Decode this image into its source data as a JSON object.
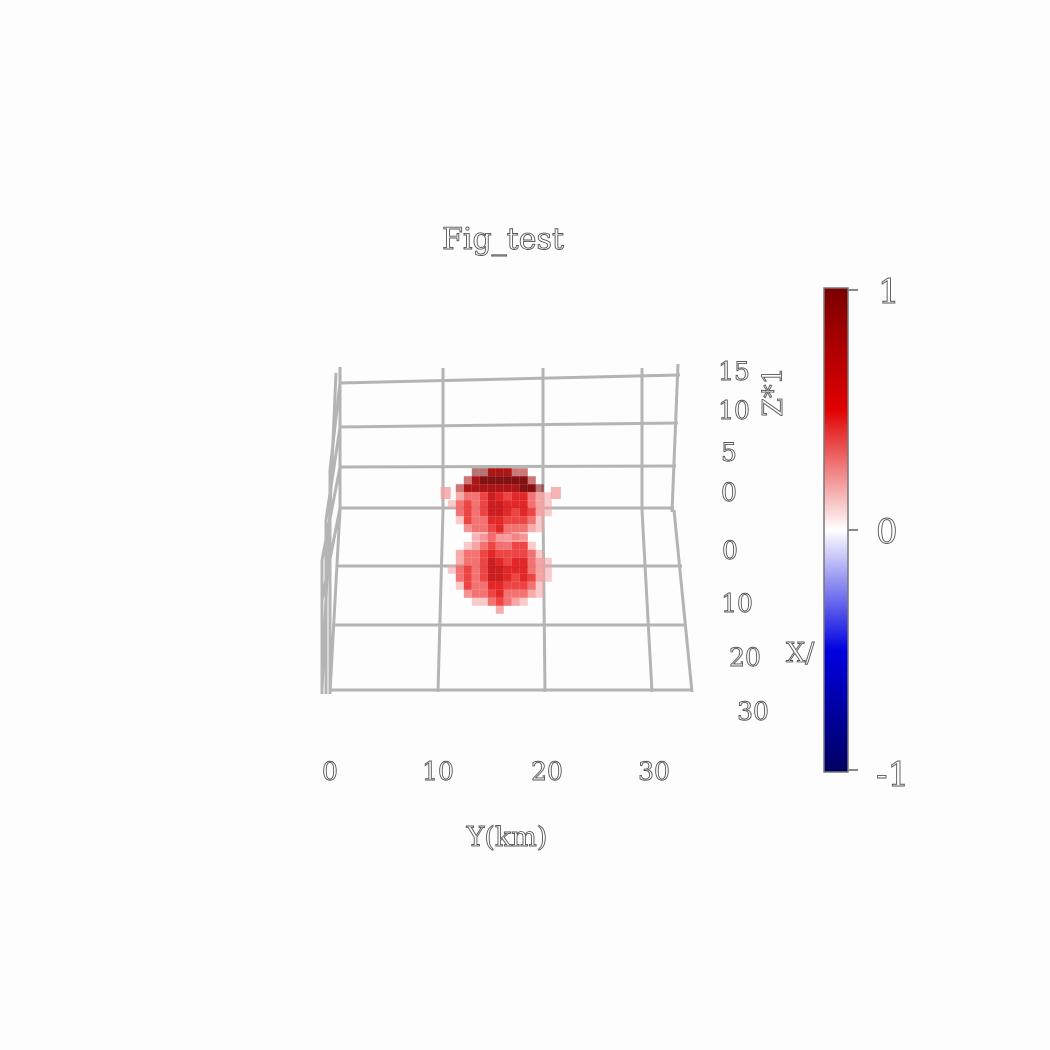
{
  "chart_data": {
    "type": "heatmap",
    "render": "3d-voxel",
    "title": "Fig_test",
    "xlabel": "Y(km)",
    "ylabel": "X/",
    "zlabel": "Z*1",
    "y_ticks": [
      "0",
      "10",
      "20",
      "30"
    ],
    "x_ticks": [
      "0",
      "10",
      "20",
      "30"
    ],
    "z_ticks": [
      "0",
      "5",
      "10",
      "15"
    ],
    "colorbar": {
      "ticks": [
        "1",
        "0",
        "-1"
      ],
      "range": [
        -1,
        1
      ],
      "colors": [
        "#7a0000",
        "#e00000",
        "#ffffff",
        "#0000e0",
        "#000060"
      ]
    },
    "series": [
      {
        "center_y_km": 16,
        "center_x_km": 0,
        "center_z": 0,
        "radius_km": 4,
        "value": 0.8
      },
      {
        "center_y_km": 16,
        "center_x_km": 0,
        "center_z": -8,
        "radius_km": 4,
        "value": 0.7
      }
    ],
    "grid": true
  }
}
